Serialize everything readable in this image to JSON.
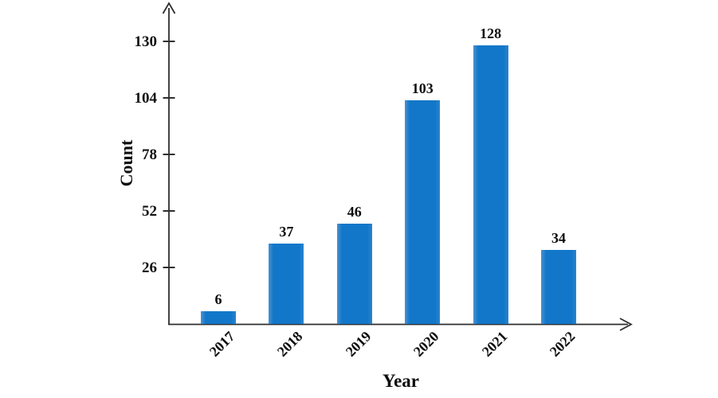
{
  "chart_data": {
    "type": "bar",
    "title": "",
    "xlabel": "Year",
    "ylabel": "Count",
    "categories": [
      "2017",
      "2018",
      "2019",
      "2020",
      "2021",
      "2022"
    ],
    "values": [
      6,
      37,
      46,
      103,
      128,
      34
    ],
    "show_value_labels": true,
    "yticks": [
      26,
      52,
      78,
      104,
      130
    ],
    "ylim": [
      0,
      146
    ],
    "grid": false,
    "legend_position": "none",
    "colors": {
      "bar": "#1277c8",
      "axis": "#2e2e2e",
      "text": "#0d0d0d",
      "background": "#ffffff"
    }
  }
}
